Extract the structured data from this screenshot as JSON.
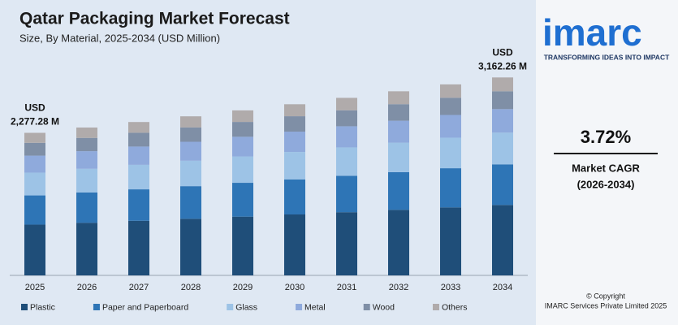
{
  "chart_data": {
    "type": "stacked-bar",
    "title": "Qatar Packaging Market Forecast",
    "subtitle": "Size, By Material, 2025-2034 (USD Million)",
    "categories": [
      "2025",
      "2026",
      "2027",
      "2028",
      "2029",
      "2030",
      "2031",
      "2032",
      "2033",
      "2034"
    ],
    "series": [
      {
        "name": "Plastic",
        "color": "#1f4e79",
        "values": [
          810.68,
          840.9,
          872.2,
          904.6,
          938.4,
          973.3,
          1009.6,
          1047.0,
          1086.2,
          1125.7
        ]
      },
      {
        "name": "Paper and Paperboard",
        "color": "#2e75b6",
        "values": [
          466.84,
          484.2,
          502.3,
          520.9,
          540.4,
          560.5,
          581.4,
          602.9,
          625.5,
          648.3
        ]
      },
      {
        "name": "Glass",
        "color": "#9dc3e6",
        "values": [
          364.36,
          377.9,
          392.0,
          406.6,
          421.8,
          437.4,
          453.8,
          470.6,
          488.2,
          506.0
        ]
      },
      {
        "name": "Metal",
        "color": "#8faadc",
        "values": [
          271.0,
          281.1,
          291.6,
          302.4,
          313.7,
          325.3,
          337.5,
          350.0,
          363.1,
          376.3
        ]
      },
      {
        "name": "Wood",
        "color": "#7f8fa6",
        "values": [
          204.96,
          212.6,
          220.5,
          228.7,
          237.2,
          246.1,
          255.2,
          264.7,
          274.6,
          284.6
        ]
      },
      {
        "name": "Others",
        "color": "#b0abab",
        "values": [
          159.44,
          165.3,
          171.5,
          177.9,
          184.5,
          191.4,
          198.5,
          205.9,
          213.6,
          221.4
        ]
      }
    ],
    "ylim": [
      0,
      3400
    ],
    "annotations": [
      {
        "category": "2025",
        "lines": [
          "USD",
          "2,277.28 M"
        ]
      },
      {
        "category": "2034",
        "lines": [
          "USD",
          "3,162.26 M"
        ]
      }
    ]
  },
  "sidebar": {
    "logo": "imarc",
    "tagline": "TRANSFORMING IDEAS INTO IMPACT",
    "cagr": "3.72%",
    "cagr_label": "Market CAGR",
    "cagr_period": "(2026-2034)",
    "copyright": "© Copyright",
    "company": "IMARC Services Private Limited 2025"
  }
}
